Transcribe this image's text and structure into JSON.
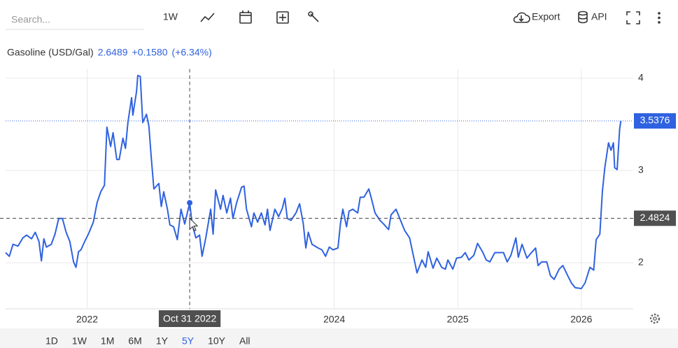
{
  "toolbar": {
    "search_placeholder": "Search...",
    "interval": "1W",
    "export": "Export",
    "api": "API"
  },
  "ranges": [
    "1D",
    "1W",
    "1M",
    "6M",
    "1Y",
    "5Y",
    "10Y",
    "All"
  ],
  "active_range": "5Y",
  "chart_data": {
    "type": "line",
    "title": "Gasoline (USD/Gal)",
    "header": {
      "price": "2.6489",
      "change": "+0.1580",
      "change_pct": "(+6.34%)"
    },
    "x": [
      2021.34,
      2021.37,
      2021.4,
      2021.44,
      2021.48,
      2021.51,
      2021.55,
      2021.58,
      2021.61,
      2021.63,
      2021.65,
      2021.67,
      2021.71,
      2021.74,
      2021.77,
      2021.8,
      2021.83,
      2021.86,
      2021.89,
      2021.91,
      2021.93,
      2021.95,
      2021.98,
      2022.01,
      2022.05,
      2022.08,
      2022.11,
      2022.14,
      2022.16,
      2022.19,
      2022.21,
      2022.24,
      2022.26,
      2022.29,
      2022.31,
      2022.33,
      2022.36,
      2022.37,
      2022.4,
      2022.41,
      2022.43,
      2022.45,
      2022.48,
      2022.5,
      2022.52,
      2022.54,
      2022.58,
      2022.6,
      2022.62,
      2022.65,
      2022.67,
      2022.7,
      2022.73,
      2022.76,
      2022.79,
      2022.83,
      2022.85,
      2022.88,
      2022.91,
      2022.93,
      2022.96,
      2023.0,
      2023.02,
      2023.04,
      2023.08,
      2023.1,
      2023.13,
      2023.16,
      2023.18,
      2023.21,
      2023.25,
      2023.27,
      2023.29,
      2023.33,
      2023.35,
      2023.38,
      2023.41,
      2023.44,
      2023.46,
      2023.48,
      2023.52,
      2023.55,
      2023.58,
      2023.6,
      2023.62,
      2023.65,
      2023.69,
      2023.72,
      2023.75,
      2023.77,
      2023.79,
      2023.82,
      2023.87,
      2023.9,
      2023.93,
      2023.96,
      2023.99,
      2024.03,
      2024.05,
      2024.07,
      2024.1,
      2024.12,
      2024.15,
      2024.19,
      2024.21,
      2024.24,
      2024.28,
      2024.3,
      2024.33,
      2024.37,
      2024.4,
      2024.44,
      2024.46,
      2024.5,
      2024.54,
      2024.57,
      2024.61,
      2024.64,
      2024.67,
      2024.71,
      2024.74,
      2024.76,
      2024.8,
      2024.83,
      2024.87,
      2024.9,
      2024.92,
      2024.96,
      2024.99,
      2025.03,
      2025.06,
      2025.09,
      2025.13,
      2025.16,
      2025.2,
      2025.23,
      2025.26,
      2025.3,
      2025.33,
      2025.37,
      2025.4,
      2025.43,
      2025.47,
      2025.49,
      2025.52,
      2025.56,
      2025.59,
      2025.63,
      2025.65,
      2025.68,
      2025.72,
      2025.75,
      2025.78,
      2025.82,
      2025.85,
      2025.89,
      2025.92,
      2025.95,
      2026.0,
      2026.03,
      2026.07,
      2026.1,
      2026.12,
      2026.15,
      2026.17,
      2026.19,
      2026.22,
      2026.24,
      2026.26,
      2026.27,
      2026.29,
      2026.31,
      2026.32
    ],
    "series": [
      {
        "name": "Gasoline (USD/Gal)",
        "color": "#2f62e0",
        "values": [
          2.11,
          2.07,
          2.2,
          2.18,
          2.27,
          2.3,
          2.26,
          2.33,
          2.23,
          2.02,
          2.26,
          2.17,
          2.2,
          2.31,
          2.48,
          2.48,
          2.33,
          2.23,
          2.01,
          1.95,
          2.12,
          2.14,
          2.23,
          2.31,
          2.44,
          2.65,
          2.77,
          2.84,
          3.47,
          3.26,
          3.41,
          3.12,
          3.12,
          3.35,
          3.24,
          3.52,
          3.79,
          3.6,
          3.86,
          4.03,
          4.02,
          3.52,
          3.61,
          3.48,
          3.12,
          2.8,
          2.86,
          2.61,
          2.77,
          2.58,
          2.41,
          2.39,
          2.25,
          2.58,
          2.42,
          2.65,
          2.42,
          2.27,
          2.3,
          2.07,
          2.27,
          2.58,
          2.31,
          2.79,
          2.58,
          2.73,
          2.54,
          2.7,
          2.48,
          2.65,
          2.82,
          2.83,
          2.58,
          2.39,
          2.54,
          2.44,
          2.54,
          2.41,
          2.58,
          2.35,
          2.58,
          2.5,
          2.59,
          2.7,
          2.48,
          2.46,
          2.54,
          2.64,
          2.42,
          2.16,
          2.33,
          2.2,
          2.16,
          2.14,
          2.07,
          2.17,
          2.14,
          2.16,
          2.42,
          2.58,
          2.39,
          2.56,
          2.58,
          2.54,
          2.71,
          2.71,
          2.8,
          2.7,
          2.54,
          2.46,
          2.42,
          2.36,
          2.52,
          2.58,
          2.45,
          2.35,
          2.27,
          2.08,
          1.89,
          2.03,
          1.95,
          2.12,
          1.94,
          2.05,
          1.95,
          1.93,
          2.03,
          1.93,
          2.05,
          2.06,
          2.11,
          2.03,
          2.08,
          2.21,
          2.12,
          2.03,
          2.01,
          2.11,
          2.11,
          2.11,
          2.01,
          2.08,
          2.27,
          2.06,
          2.2,
          2.05,
          2.1,
          2.16,
          1.97,
          2.01,
          2.01,
          1.86,
          1.82,
          1.93,
          1.97,
          1.86,
          1.78,
          1.73,
          1.72,
          1.78,
          1.95,
          1.92,
          2.25,
          2.31,
          2.77,
          3.03,
          3.3,
          3.22,
          3.3,
          3.03,
          3.01,
          3.45,
          3.5376
        ]
      }
    ],
    "xlim": [
      2021.34,
      2026.42
    ],
    "xticks": [
      2022,
      2024,
      2025,
      2026
    ],
    "ylim": [
      1.5,
      4.1
    ],
    "yticks": [
      2,
      3,
      4
    ],
    "grid": true,
    "highlight": {
      "x": 2022.83,
      "y": 2.65
    },
    "crosshair": {
      "x_label": "Oct 31 2022",
      "y": 2.4824
    }
  }
}
